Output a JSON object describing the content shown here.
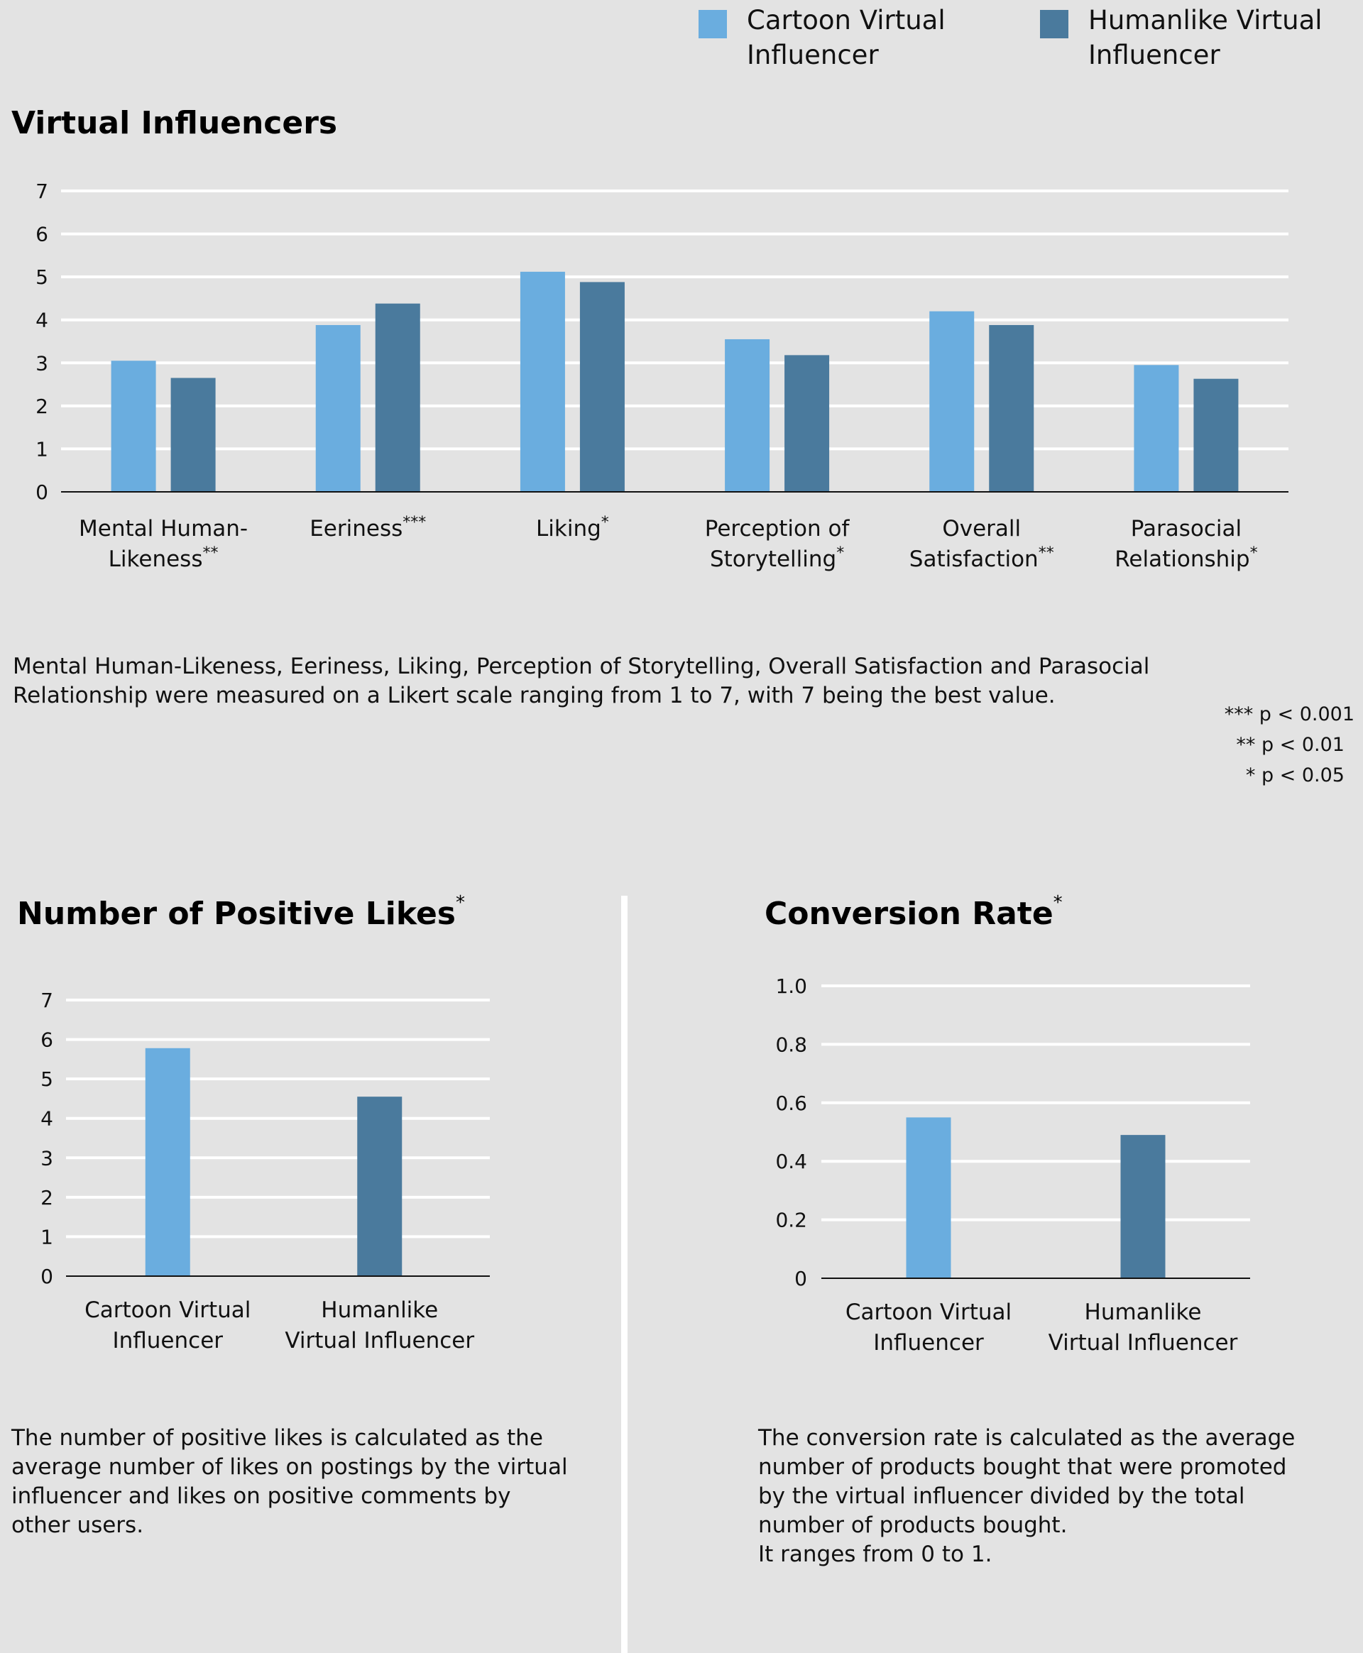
{
  "colors": {
    "cartoon": "#6aaddf",
    "humanlike": "#4a7a9d",
    "background": "#e3e3e3",
    "grid": "#ffffff",
    "axis": "#111111"
  },
  "legend": [
    {
      "label_line1": "Cartoon Virtual",
      "label_line2": "Influencer",
      "color": "#6aaddf"
    },
    {
      "label_line1": "Humanlike Virtual",
      "label_line2": "Influencer",
      "color": "#4a7a9d"
    }
  ],
  "notes": {
    "likert_line1": "Mental Human-Likeness, Eeriness, Liking, Perception of Storytelling, Overall Satisfaction and Parasocial",
    "likert_line2": "Relationship were measured on a Likert scale ranging from 1 to 7, with 7 being the best value.",
    "significance": [
      "*** p < 0.001",
      "** p < 0.01",
      "* p < 0.05"
    ],
    "likes_lines": [
      "The number of positive likes is calculated as the",
      "average number of likes on postings by the virtual",
      "influencer and likes on positive comments by",
      "other users."
    ],
    "conversion_lines": [
      "The conversion rate is calculated as the average",
      "number of products bought that were promoted",
      "by the virtual influencer divided by the total",
      "number of products bought.",
      "It ranges from 0 to 1."
    ]
  },
  "chart_data": [
    {
      "type": "bar",
      "title": "Virtual Influencers",
      "title_marker": "",
      "categories": [
        {
          "line1": "Mental Human-",
          "line2": "Likeness",
          "marker": "**"
        },
        {
          "line1": "Eeriness",
          "line2": "",
          "marker": "***"
        },
        {
          "line1": "Liking",
          "line2": "",
          "marker": "*"
        },
        {
          "line1": "Perception of",
          "line2": "Storytelling",
          "marker": "*"
        },
        {
          "line1": "Overall",
          "line2": "Satisfaction",
          "marker": "**"
        },
        {
          "line1": "Parasocial",
          "line2": "Relationship",
          "marker": "*"
        }
      ],
      "series": [
        {
          "name": "Cartoon Virtual Influencer",
          "values": [
            3.05,
            3.88,
            5.12,
            3.55,
            4.2,
            2.95
          ]
        },
        {
          "name": "Humanlike Virtual Influencer",
          "values": [
            2.65,
            4.38,
            4.88,
            3.18,
            3.88,
            2.63
          ]
        }
      ],
      "ylim": [
        0,
        7
      ],
      "yticks": [
        "0",
        "1",
        "2",
        "3",
        "4",
        "5",
        "6",
        "7"
      ],
      "ytick_values": [
        0,
        1,
        2,
        3,
        4,
        5,
        6,
        7
      ]
    },
    {
      "type": "bar",
      "title": "Number of Positive Likes",
      "title_marker": "*",
      "categories": [
        {
          "line1": "Cartoon Virtual",
          "line2": "Influencer",
          "marker": ""
        },
        {
          "line1": "Humanlike",
          "line2": "Virtual Influencer",
          "marker": ""
        }
      ],
      "values": [
        5.78,
        4.55
      ],
      "ylim": [
        0,
        7
      ],
      "yticks": [
        "0",
        "1",
        "2",
        "3",
        "4",
        "5",
        "6",
        "7"
      ],
      "ytick_values": [
        0,
        1,
        2,
        3,
        4,
        5,
        6,
        7
      ]
    },
    {
      "type": "bar",
      "title": "Conversion Rate",
      "title_marker": "*",
      "categories": [
        {
          "line1": "Cartoon Virtual",
          "line2": "Influencer",
          "marker": ""
        },
        {
          "line1": "Humanlike",
          "line2": "Virtual Influencer",
          "marker": ""
        }
      ],
      "values": [
        0.55,
        0.49
      ],
      "ylim": [
        0,
        1
      ],
      "yticks": [
        "0",
        "0.2",
        "0.4",
        "0.6",
        "0.8",
        "1.0"
      ],
      "ytick_values": [
        0,
        0.2,
        0.4,
        0.6,
        0.8,
        1.0
      ]
    }
  ]
}
